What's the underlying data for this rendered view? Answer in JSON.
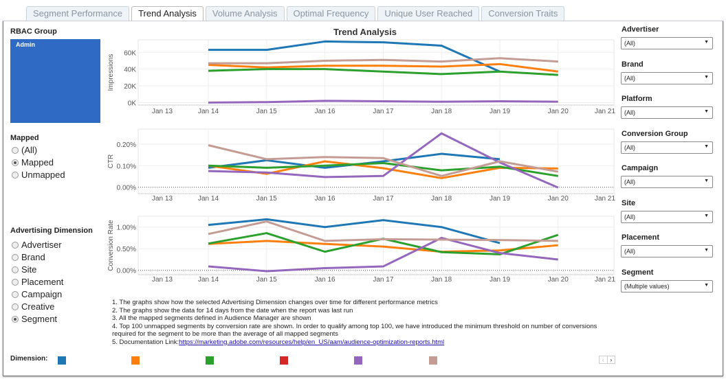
{
  "tabs": [
    {
      "label": "Segment Performance"
    },
    {
      "label": "Trend Analysis"
    },
    {
      "label": "Volume Analysis"
    },
    {
      "label": "Optimal Frequency"
    },
    {
      "label": "Unique User Reached"
    },
    {
      "label": "Conversion Traits"
    }
  ],
  "active_tab": "Trend Analysis",
  "left": {
    "rbac_label": "RBAC Group",
    "rbac_value": "Admin",
    "mapped_label": "Mapped",
    "mapped_options": [
      "(All)",
      "Mapped",
      "Unmapped"
    ],
    "mapped_selected": "Mapped",
    "dimension_label": "Advertising Dimension",
    "dimension_options": [
      "Advertiser",
      "Brand",
      "Site",
      "Placement",
      "Campaign",
      "Creative",
      "Segment"
    ],
    "dimension_selected": "Segment"
  },
  "colors": {
    "s1": "#1f77b4",
    "s2": "#ff7f0e",
    "s3": "#2ca02c",
    "s4": "#d62728",
    "s5": "#9467bd",
    "s6": "#c49c94"
  },
  "chart_data": [
    {
      "type": "line",
      "title": "Trend Analysis",
      "ylabel": "Impressions",
      "x": [
        "Jan 14",
        "Jan 15",
        "Jan 16",
        "Jan 17",
        "Jan 18",
        "Jan 19",
        "Jan 20"
      ],
      "xticks": [
        "Jan 13",
        "Jan 14",
        "Jan 15",
        "Jan 16",
        "Jan 17",
        "Jan 18",
        "Jan 19",
        "Jan 20",
        "Jan 21"
      ],
      "yticks": [
        "0K",
        "20K",
        "40K",
        "60K"
      ],
      "ylim": [
        -3000,
        75000
      ],
      "grid": true,
      "series": [
        {
          "color": "#1f77b4",
          "values": [
            63000,
            63000,
            73000,
            72000,
            68000,
            37000,
            null
          ]
        },
        {
          "color": "#ff7f0e",
          "values": [
            45000,
            42000,
            44000,
            44000,
            43000,
            46000,
            37000
          ]
        },
        {
          "color": "#2ca02c",
          "values": [
            38000,
            40000,
            40000,
            37000,
            34000,
            37000,
            33000
          ]
        },
        {
          "color": "#9467bd",
          "values": [
            0,
            500,
            2000,
            1500,
            1000,
            1500,
            1000
          ]
        },
        {
          "color": "#c49c94",
          "values": [
            47000,
            47000,
            50000,
            51000,
            49000,
            53000,
            49000
          ]
        }
      ]
    },
    {
      "type": "line",
      "ylabel": "CTR",
      "x": [
        "Jan 14",
        "Jan 15",
        "Jan 16",
        "Jan 17",
        "Jan 18",
        "Jan 19",
        "Jan 20"
      ],
      "xticks": [
        "Jan 13",
        "Jan 14",
        "Jan 15",
        "Jan 16",
        "Jan 17",
        "Jan 18",
        "Jan 19",
        "Jan 20",
        "Jan 21"
      ],
      "yticks": [
        "0.00%",
        "0.10%",
        "0.20%"
      ],
      "ylim": [
        -0.03,
        0.27
      ],
      "grid": true,
      "series": [
        {
          "color": "#1f77b4",
          "values": [
            0.09,
            0.125,
            0.09,
            0.12,
            0.155,
            0.13,
            null
          ]
        },
        {
          "color": "#ff7f0e",
          "values": [
            0.1,
            0.062,
            0.12,
            0.088,
            0.042,
            0.09,
            0.087
          ]
        },
        {
          "color": "#2ca02c",
          "values": [
            0.1,
            0.09,
            0.1,
            0.112,
            0.078,
            0.095,
            0.052
          ]
        },
        {
          "color": "#9467bd",
          "values": [
            0.075,
            0.068,
            0.047,
            0.052,
            0.25,
            0.115,
            -0.002
          ]
        },
        {
          "color": "#c49c94",
          "values": [
            0.195,
            0.13,
            0.14,
            0.135,
            0.052,
            0.12,
            0.072
          ]
        }
      ]
    },
    {
      "type": "line",
      "ylabel": "Conversion Rate",
      "x": [
        "Jan 14",
        "Jan 15",
        "Jan 16",
        "Jan 17",
        "Jan 18",
        "Jan 19",
        "Jan 20"
      ],
      "xticks": [
        "Jan 13",
        "Jan 14",
        "Jan 15",
        "Jan 16",
        "Jan 17",
        "Jan 18",
        "Jan 19",
        "Jan 20",
        "Jan 21"
      ],
      "yticks": [
        "0.00%",
        "0.50%",
        "1.00%"
      ],
      "ylim": [
        -0.1,
        1.25
      ],
      "grid": true,
      "series": [
        {
          "color": "#1f77b4",
          "values": [
            1.05,
            1.18,
            1.0,
            1.16,
            1.0,
            0.63,
            null
          ]
        },
        {
          "color": "#ff7f0e",
          "values": [
            0.61,
            0.68,
            0.61,
            0.55,
            0.43,
            0.46,
            0.58
          ]
        },
        {
          "color": "#2ca02c",
          "values": [
            0.62,
            0.86,
            0.43,
            0.73,
            0.42,
            0.37,
            0.82
          ]
        },
        {
          "color": "#9467bd",
          "values": [
            0.09,
            -0.02,
            0.05,
            0.09,
            0.75,
            0.4,
            0.25
          ]
        },
        {
          "color": "#c49c94",
          "values": [
            0.84,
            1.13,
            0.68,
            0.72,
            0.71,
            0.7,
            0.68
          ]
        }
      ]
    }
  ],
  "notes": {
    "n1": "1.  The graphs show how the selected Advertising Dimension changes over time for different performance metrics",
    "n2": "2. The graphs show the data for 14 days from the date when the report was last run",
    "n3": "3. All the mapped segments defined in Audience Manager are shown",
    "n4": "4. Top 100 unmapped segments by conversion rate are shown. In order to qualify among top 100, we have introduced the minimum threshold on number of conversions",
    "n4b": "required for the segment to be more than the average of all mapped segments",
    "n5": "5. Documentation Link:",
    "link": "https://marketing.adobe.com/resources/help/en_US/aam/audience-optimization-reports.html"
  },
  "legend": {
    "label": "Dimension:",
    "swatches": [
      "#1f77b4",
      "#ff7f0e",
      "#2ca02c",
      "#d62728",
      "#9467bd",
      "#c49c94"
    ],
    "prev": "‹",
    "next": "›"
  },
  "filters": [
    {
      "label": "Advertiser",
      "value": "(All)"
    },
    {
      "label": "Brand",
      "value": "(All)"
    },
    {
      "label": "Platform",
      "value": "(All)"
    },
    {
      "label": "Conversion Group",
      "value": "(All)"
    },
    {
      "label": "Campaign",
      "value": "(All)"
    },
    {
      "label": "Site",
      "value": "(All)"
    },
    {
      "label": "Placement",
      "value": "(All)"
    },
    {
      "label": "Segment",
      "value": "(Multiple values)"
    }
  ]
}
